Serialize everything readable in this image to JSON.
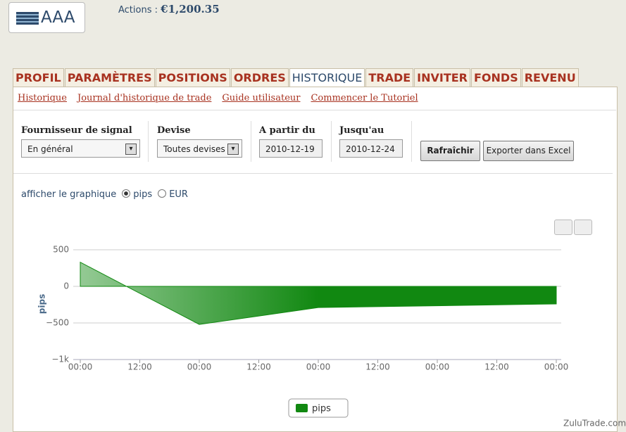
{
  "header": {
    "logo": "AAA",
    "actions_label": "Actions :",
    "actions_value": "€1,200.35"
  },
  "tabs": [
    "PROFIL",
    "PARAMÈTRES",
    "POSITIONS",
    "ORDRES",
    "HISTORIQUE",
    "TRADE",
    "INVITER",
    "FONDS",
    "REVENU"
  ],
  "subnav": [
    "Historique",
    "Journal d'historique de trade",
    "Guide utilisateur",
    "Commencer le Tutoriel"
  ],
  "filters": {
    "provider": {
      "label": "Fournisseur de signal",
      "value": "En général"
    },
    "currency": {
      "label": "Devise",
      "value": "Toutes devises"
    },
    "from": {
      "label": "A partir du",
      "value": "2010-12-19"
    },
    "to": {
      "label": "Jusqu'au",
      "value": "2010-12-24"
    },
    "buttons": [
      "Rafraîchir",
      "Exporter dans Excel"
    ]
  },
  "chart_options": {
    "label": "afficher le graphique",
    "options": [
      "pips",
      "EUR"
    ]
  },
  "chart_data": {
    "type": "area",
    "ylabel": "pips",
    "x": [
      0,
      24,
      48,
      96
    ],
    "series": [
      {
        "name": "pips",
        "color": "#118811",
        "values": [
          330,
          -520,
          -290,
          -240
        ]
      }
    ],
    "xlim": [
      0,
      96
    ],
    "xticks": [
      {
        "value": 0,
        "label": "00:00"
      },
      {
        "value": 12,
        "label": "12:00"
      },
      {
        "value": 24,
        "label": "00:00"
      },
      {
        "value": 36,
        "label": "12:00"
      },
      {
        "value": 48,
        "label": "00:00"
      },
      {
        "value": 60,
        "label": "12:00"
      },
      {
        "value": 72,
        "label": "00:00"
      },
      {
        "value": 84,
        "label": "12:00"
      },
      {
        "value": 96,
        "label": "00:00"
      }
    ],
    "ylim": [
      -1000,
      500
    ],
    "yticks": [
      {
        "value": -1000,
        "label": "−1k"
      },
      {
        "value": -500,
        "label": "−500"
      },
      0,
      500
    ],
    "grid": true
  },
  "watermark": "ZuluTrade.com"
}
